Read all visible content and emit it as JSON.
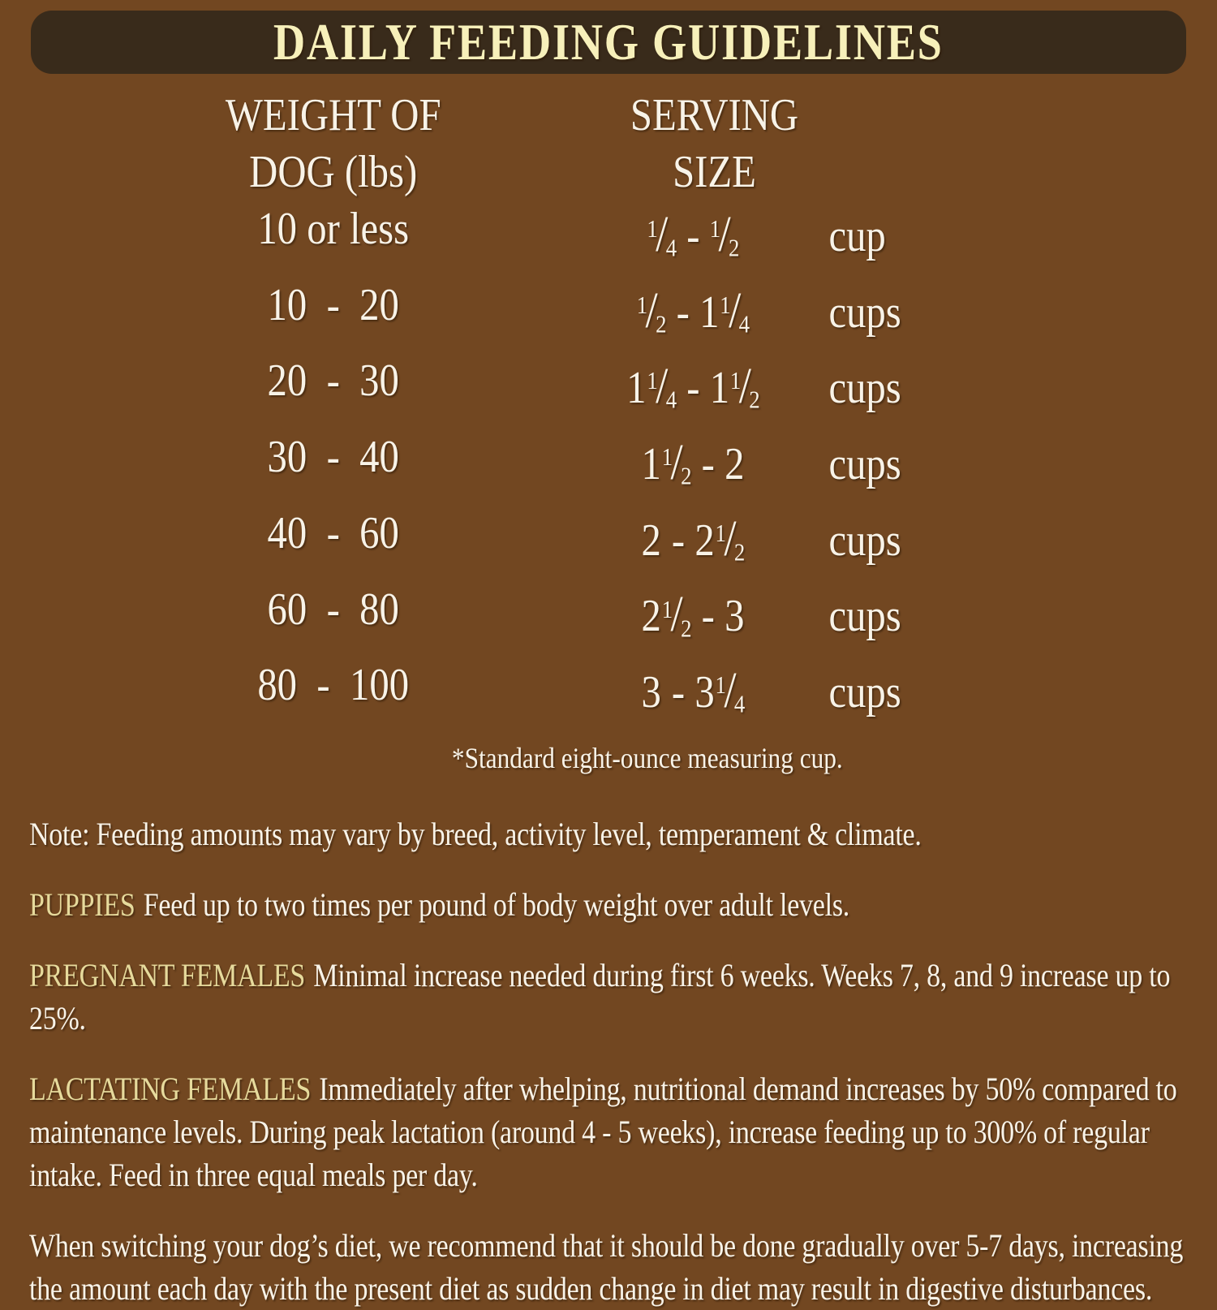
{
  "title": "DAILY FEEDING GUIDELINES",
  "table": {
    "col1_header": {
      "line1": "WEIGHT OF",
      "line2": "DOG (lbs)"
    },
    "col2_header": {
      "line1": "SERVING",
      "line2": "SIZE"
    },
    "rows": [
      {
        "weight": "10 or less",
        "from": {
          "whole": "",
          "frac": "1/4"
        },
        "to": {
          "whole": "",
          "frac": "1/2"
        },
        "unit": "cup"
      },
      {
        "weight": "10  -  20",
        "from": {
          "whole": "",
          "frac": "1/2"
        },
        "to": {
          "whole": "1",
          "frac": "1/4"
        },
        "unit": "cups"
      },
      {
        "weight": "20  -  30",
        "from": {
          "whole": "1",
          "frac": "1/4"
        },
        "to": {
          "whole": "1",
          "frac": "1/2"
        },
        "unit": "cups"
      },
      {
        "weight": "30  -  40",
        "from": {
          "whole": "1",
          "frac": "1/2"
        },
        "to": {
          "whole": "2",
          "frac": ""
        },
        "unit": "cups"
      },
      {
        "weight": "40  -  60",
        "from": {
          "whole": "2",
          "frac": ""
        },
        "to": {
          "whole": "2",
          "frac": "1/2"
        },
        "unit": "cups"
      },
      {
        "weight": "60  -  80",
        "from": {
          "whole": "2",
          "frac": "1/2"
        },
        "to": {
          "whole": "3",
          "frac": ""
        },
        "unit": "cups"
      },
      {
        "weight": "80  -  100",
        "from": {
          "whole": "3",
          "frac": ""
        },
        "to": {
          "whole": "3",
          "frac": "1/4"
        },
        "unit": "cups"
      }
    ],
    "footnote": "*Standard eight-ounce measuring cup."
  },
  "notes": [
    {
      "heading": "",
      "text": "Note: Feeding amounts may vary by breed, activity level, temperament & climate."
    },
    {
      "heading": "PUPPIES",
      "text": "Feed up to two times per pound of body weight over adult levels."
    },
    {
      "heading": "PREGNANT FEMALES",
      "text": "Minimal increase needed during first 6 weeks. Weeks 7, 8, and 9 increase up to 25%."
    },
    {
      "heading": "LACTATING FEMALES",
      "text": "Immediately after whelping, nutritional demand increases by 50% compared to maintenance levels. During peak lactation (around 4 - 5 weeks), increase feeding up to 300% of regular intake. Feed in three equal meals per day."
    },
    {
      "heading": "",
      "text": "When switching your dog’s diet, we recommend that it should be done gradually over 5-7 days, increasing the amount each day with the present diet as sudden change in diet may result in digestive disturbances."
    }
  ],
  "colors": {
    "background": "#724721",
    "title_bar": "#392b1b",
    "title_text": "#f7f0ba",
    "section_heading": "#e6da9c",
    "body_text": "#f8f3e8"
  }
}
